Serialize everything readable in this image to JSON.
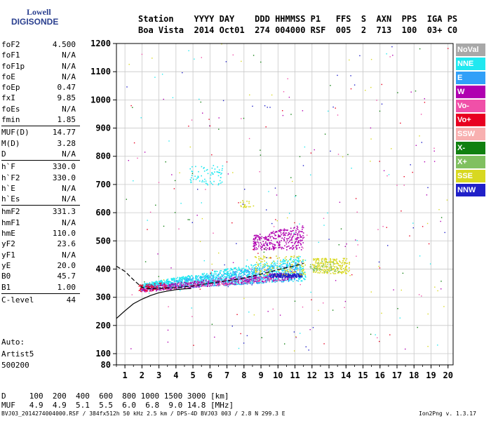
{
  "logo": {
    "line1": "Lowell",
    "line2": "DIGISONDE"
  },
  "header": {
    "row1": "Station    YYYY DAY    DDD HHMMSS P1   FFS  S  AXN  PPS  IGA PS",
    "row2": "Boa Vista  2014 Oct01  274 004000 RSF  005  2  713  100  03+ C0"
  },
  "params": [
    [
      {
        "k": "foF2",
        "v": "4.500"
      },
      {
        "k": "foF1",
        "v": "N/A"
      },
      {
        "k": "foF1p",
        "v": "N/A"
      },
      {
        "k": "foE",
        "v": "N/A"
      },
      {
        "k": "foEp",
        "v": "0.47"
      },
      {
        "k": "fxI",
        "v": "9.85"
      },
      {
        "k": "foEs",
        "v": "N/A"
      },
      {
        "k": "fmin",
        "v": "1.85"
      }
    ],
    [
      {
        "k": "MUF(D)",
        "v": "14.77"
      },
      {
        "k": "M(D)",
        "v": "3.28"
      },
      {
        "k": "D",
        "v": "N/A"
      }
    ],
    [
      {
        "k": "h`F",
        "v": "330.0"
      },
      {
        "k": "h`F2",
        "v": "330.0"
      },
      {
        "k": "h`E",
        "v": "N/A"
      },
      {
        "k": "h`Es",
        "v": "N/A"
      }
    ],
    [
      {
        "k": "hmF2",
        "v": "331.3"
      },
      {
        "k": "hmF1",
        "v": "N/A"
      },
      {
        "k": "hmE",
        "v": "110.0"
      },
      {
        "k": "yF2",
        "v": "23.6"
      },
      {
        "k": "yF1",
        "v": "N/A"
      },
      {
        "k": "yE",
        "v": "20.0"
      },
      {
        "k": "B0",
        "v": "45.7"
      },
      {
        "k": "B1",
        "v": "1.00"
      }
    ],
    [
      {
        "k": "C-level",
        "v": "44"
      }
    ]
  ],
  "auto": {
    "l1": "Auto:",
    "l2": "Artist5",
    "l3": "500200"
  },
  "legend": [
    {
      "label": "NoVal",
      "color": "#a8a8a8"
    },
    {
      "label": "NNE",
      "color": "#20e8f0"
    },
    {
      "label": "E",
      "color": "#30a0f8"
    },
    {
      "label": "W",
      "color": "#b000b0"
    },
    {
      "label": "Vo-",
      "color": "#f050a8"
    },
    {
      "label": "Vo+",
      "color": "#e80020"
    },
    {
      "label": "SSW",
      "color": "#f8b0b0"
    },
    {
      "label": "X-",
      "color": "#108010"
    },
    {
      "label": "X+",
      "color": "#80c060"
    },
    {
      "label": "SSE",
      "color": "#d8d820"
    },
    {
      "label": "NNW",
      "color": "#2020c8"
    }
  ],
  "muf_table": {
    "row1": "D     100  200  400  600  800 1000 1500 3000 [km]",
    "row2": "MUF   4.9  4.9  5.1  5.5  6.0  6.8  9.0 14.8 [MHz]"
  },
  "footer": {
    "left": "BVJ03_2014274004000.RSF / 384fx512h 50 kHz 2.5 km / DPS-4D BVJ03 003 / 2.8 N 299.3 E",
    "right": "Ion2Png v. 1.3.17"
  },
  "chart_data": {
    "type": "scatter",
    "xlim": [
      0.5,
      20.3
    ],
    "ylim": [
      80,
      1200
    ],
    "x_ticks": [
      1,
      2,
      3,
      4,
      5,
      6,
      7,
      8,
      9,
      10,
      11,
      12,
      13,
      14,
      15,
      16,
      17,
      18,
      19,
      20
    ],
    "y_ticks": [
      80,
      100,
      200,
      300,
      400,
      500,
      600,
      700,
      800,
      900,
      1000,
      1100,
      1200
    ],
    "xlabel": "",
    "ylabel": "",
    "grid": true,
    "legend_position": "right",
    "clusters": [
      {
        "series": "E",
        "x_range": [
          1.9,
          11.3
        ],
        "y_start": [
          325,
          345
        ],
        "y_end": [
          360,
          430
        ],
        "count": 900
      },
      {
        "series": "NNE",
        "x_range": [
          1.9,
          11.6
        ],
        "y_start": [
          330,
          350
        ],
        "y_end": [
          360,
          450
        ],
        "count": 900
      },
      {
        "series": "W",
        "x_range": [
          1.9,
          11.0
        ],
        "y_start": [
          320,
          340
        ],
        "y_end": [
          365,
          395
        ],
        "count": 450
      },
      {
        "series": "W",
        "x_range": [
          8.5,
          11.5
        ],
        "y_start": [
          470,
          520
        ],
        "y_end": [
          470,
          560
        ],
        "count": 330
      },
      {
        "series": "Vo-",
        "x_range": [
          1.9,
          10.0
        ],
        "y_start": [
          320,
          340
        ],
        "y_end": [
          360,
          380
        ],
        "count": 130
      },
      {
        "series": "Vo+",
        "x_range": [
          1.8,
          3.4
        ],
        "y_start": [
          320,
          345
        ],
        "y_end": [
          330,
          355
        ],
        "count": 60
      },
      {
        "series": "NNW",
        "x_range": [
          9.5,
          11.4
        ],
        "y_start": [
          372,
          385
        ],
        "y_end": [
          372,
          385
        ],
        "count": 170
      },
      {
        "series": "SSE",
        "x_range": [
          8.6,
          11.6
        ],
        "y_start": [
          380,
          450
        ],
        "y_end": [
          380,
          450
        ],
        "count": 120
      },
      {
        "series": "SSE",
        "x_range": [
          12.0,
          14.2
        ],
        "y_start": [
          385,
          440
        ],
        "y_end": [
          385,
          440
        ],
        "count": 220
      },
      {
        "series": "SSE",
        "x_range": [
          7.7,
          8.6
        ],
        "y_start": [
          620,
          645
        ],
        "y_end": [
          620,
          645
        ],
        "count": 20
      },
      {
        "series": "NNE",
        "x_range": [
          4.8,
          6.8
        ],
        "y_start": [
          700,
          770
        ],
        "y_end": [
          700,
          770
        ],
        "count": 70
      },
      {
        "series": "X+",
        "x_range": [
          11.8,
          13.6
        ],
        "y_start": [
          390,
          430
        ],
        "y_end": [
          390,
          430
        ],
        "count": 40
      }
    ],
    "profile_curves": [
      {
        "name": "solid",
        "style": "solid",
        "points": [
          [
            0.5,
            225
          ],
          [
            1,
            252
          ],
          [
            1.5,
            277
          ],
          [
            2,
            293
          ],
          [
            2.5,
            306
          ],
          [
            3,
            316
          ],
          [
            3.5,
            322
          ],
          [
            4,
            327
          ],
          [
            4.5,
            330
          ],
          [
            4.9,
            331
          ]
        ]
      },
      {
        "name": "dashed",
        "style": "dashed",
        "points": [
          [
            0.5,
            410
          ],
          [
            1,
            392
          ],
          [
            1.5,
            362
          ],
          [
            2,
            335
          ],
          [
            2.5,
            330
          ],
          [
            3,
            332
          ],
          [
            4,
            334
          ],
          [
            5,
            340
          ],
          [
            6,
            350
          ],
          [
            7,
            358
          ],
          [
            8,
            368
          ],
          [
            9,
            382
          ],
          [
            10,
            398
          ],
          [
            11,
            412
          ],
          [
            11.5,
            420
          ]
        ]
      }
    ]
  }
}
